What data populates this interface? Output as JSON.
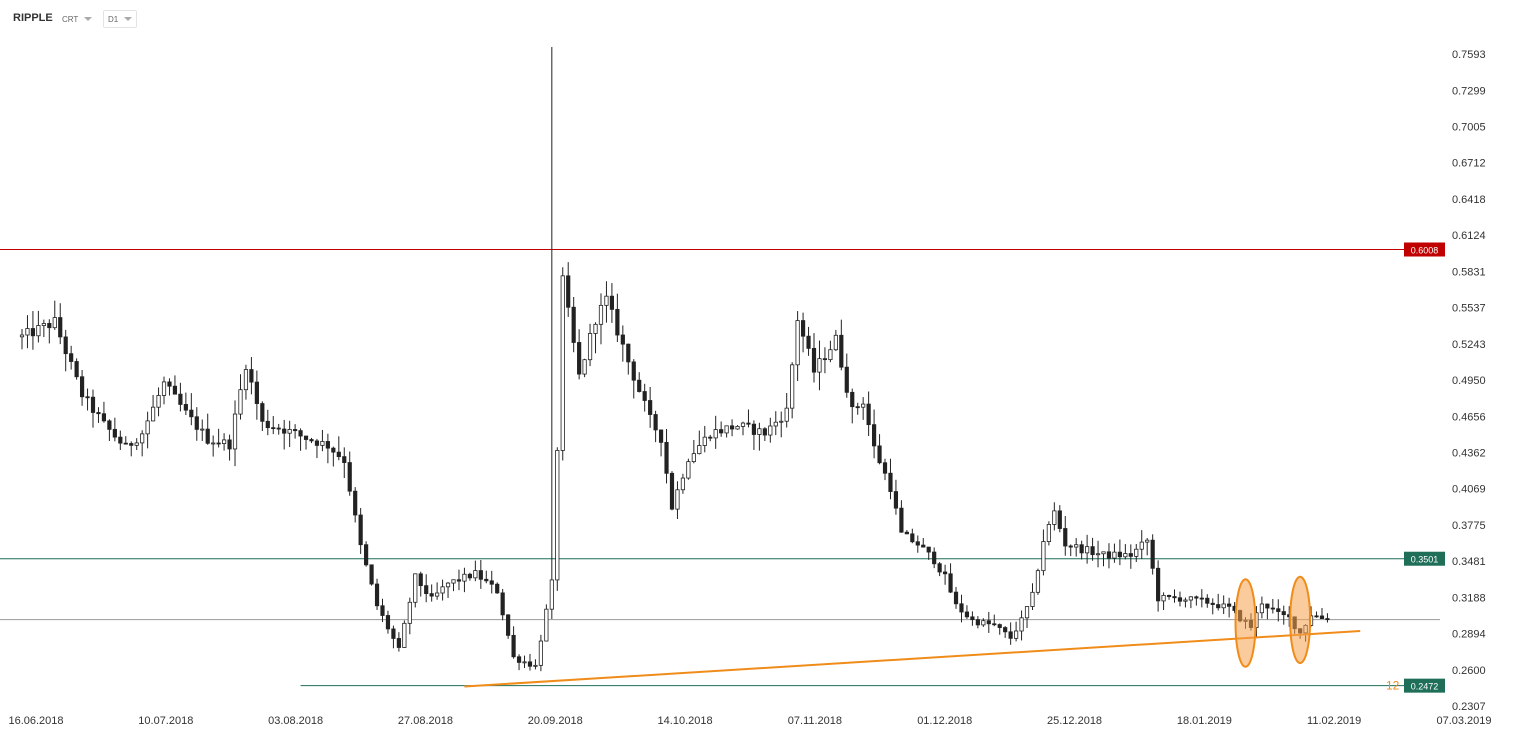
{
  "toolbar": {
    "symbol": "RIPPLE",
    "source": "CRT",
    "interval": "D1"
  },
  "chart_data": {
    "type": "candlestick",
    "ylim": [
      0.2307,
      0.77
    ],
    "y_ticks": [
      "0.7593",
      "0.7299",
      "0.7005",
      "0.6712",
      "0.6418",
      "0.6124",
      "0.5831",
      "0.5537",
      "0.5243",
      "0.4950",
      "0.4656",
      "0.4362",
      "0.4069",
      "0.3775",
      "0.3481",
      "0.3188",
      "0.2894",
      "0.2600",
      "0.2307"
    ],
    "x_ticks": [
      "16.06.2018",
      "10.07.2018",
      "03.08.2018",
      "27.08.2018",
      "20.09.2018",
      "14.10.2018",
      "07.11.2018",
      "01.12.2018",
      "25.12.2018",
      "18.01.2019",
      "11.02.2019",
      "07.03.2019"
    ],
    "x_start_date": "2018-06-16",
    "last_data_date": "2019-02-10",
    "axis_end_date": "2019-03-07",
    "price_levels": [
      {
        "value": 0.6008,
        "label": "0.6008",
        "color": "#c00000"
      },
      {
        "value": 0.3501,
        "label": "0.3501",
        "color": "#1e6e58"
      },
      {
        "value": 0.2472,
        "label": "0.2472",
        "color": "#1e6e58"
      }
    ],
    "current_price": {
      "value": 0.3007,
      "label": "0.3007",
      "color": "#8a8a8a"
    },
    "trendline": {
      "start_date": "2018-09-05",
      "start_value": 0.2465,
      "end_date": "2019-02-16",
      "end_value": 0.2915,
      "color": "#f08c1a"
    },
    "trend_label": "12",
    "highlights": [
      {
        "date": "2019-01-26",
        "low": 0.2625,
        "high": 0.3335
      },
      {
        "date": "2019-02-05",
        "low": 0.2655,
        "high": 0.3355
      }
    ],
    "close_path": [
      [
        "2018-06-16",
        0.53
      ],
      [
        "2018-06-22",
        0.542
      ],
      [
        "2018-06-27",
        0.483
      ],
      [
        "2018-07-01",
        0.459
      ],
      [
        "2018-07-05",
        0.44
      ],
      [
        "2018-07-08",
        0.452
      ],
      [
        "2018-07-12",
        0.492
      ],
      [
        "2018-07-16",
        0.468
      ],
      [
        "2018-07-20",
        0.447
      ],
      [
        "2018-07-24",
        0.443
      ],
      [
        "2018-07-27",
        0.508
      ],
      [
        "2018-07-30",
        0.46
      ],
      [
        "2018-08-03",
        0.455
      ],
      [
        "2018-08-07",
        0.448
      ],
      [
        "2018-08-11",
        0.442
      ],
      [
        "2018-08-14",
        0.43
      ],
      [
        "2018-08-17",
        0.36
      ],
      [
        "2018-08-20",
        0.312
      ],
      [
        "2018-08-24",
        0.276
      ],
      [
        "2018-08-27",
        0.335
      ],
      [
        "2018-08-30",
        0.317
      ],
      [
        "2018-09-02",
        0.33
      ],
      [
        "2018-09-07",
        0.338
      ],
      [
        "2018-09-11",
        0.324
      ],
      [
        "2018-09-14",
        0.27
      ],
      [
        "2018-09-18",
        0.263
      ],
      [
        "2018-09-21",
        0.33
      ],
      [
        "2018-09-22",
        0.44
      ],
      [
        "2018-09-23",
        0.575
      ],
      [
        "2018-09-26",
        0.498
      ],
      [
        "2018-09-29",
        0.545
      ],
      [
        "2018-10-01",
        0.56
      ],
      [
        "2018-10-05",
        0.51
      ],
      [
        "2018-10-09",
        0.463
      ],
      [
        "2018-10-11",
        0.448
      ],
      [
        "2018-10-13",
        0.392
      ],
      [
        "2018-10-16",
        0.432
      ],
      [
        "2018-10-20",
        0.452
      ],
      [
        "2018-10-25",
        0.458
      ],
      [
        "2018-10-30",
        0.452
      ],
      [
        "2018-11-03",
        0.47
      ],
      [
        "2018-11-05",
        0.545
      ],
      [
        "2018-11-08",
        0.502
      ],
      [
        "2018-11-12",
        0.528
      ],
      [
        "2018-11-15",
        0.47
      ],
      [
        "2018-11-17",
        0.478
      ],
      [
        "2018-11-19",
        0.44
      ],
      [
        "2018-11-22",
        0.408
      ],
      [
        "2018-11-24",
        0.37
      ],
      [
        "2018-11-27",
        0.362
      ],
      [
        "2018-11-30",
        0.349
      ],
      [
        "2018-12-02",
        0.335
      ],
      [
        "2018-12-04",
        0.312
      ],
      [
        "2018-12-07",
        0.3
      ],
      [
        "2018-12-11",
        0.296
      ],
      [
        "2018-12-14",
        0.286
      ],
      [
        "2018-12-16",
        0.3
      ],
      [
        "2018-12-18",
        0.32
      ],
      [
        "2018-12-20",
        0.365
      ],
      [
        "2018-12-22",
        0.388
      ],
      [
        "2018-12-24",
        0.362
      ],
      [
        "2018-12-27",
        0.358
      ],
      [
        "2018-12-31",
        0.353
      ],
      [
        "2019-01-05",
        0.353
      ],
      [
        "2019-01-08",
        0.365
      ],
      [
        "2019-01-10",
        0.318
      ],
      [
        "2019-01-14",
        0.318
      ],
      [
        "2019-01-19",
        0.315
      ],
      [
        "2019-01-23",
        0.31
      ],
      [
        "2019-01-25",
        0.302
      ],
      [
        "2019-01-27",
        0.295
      ],
      [
        "2019-01-29",
        0.315
      ],
      [
        "2019-02-01",
        0.305
      ],
      [
        "2019-02-03",
        0.302
      ],
      [
        "2019-02-05",
        0.29
      ],
      [
        "2019-02-07",
        0.305
      ],
      [
        "2019-02-10",
        0.3007
      ]
    ]
  }
}
